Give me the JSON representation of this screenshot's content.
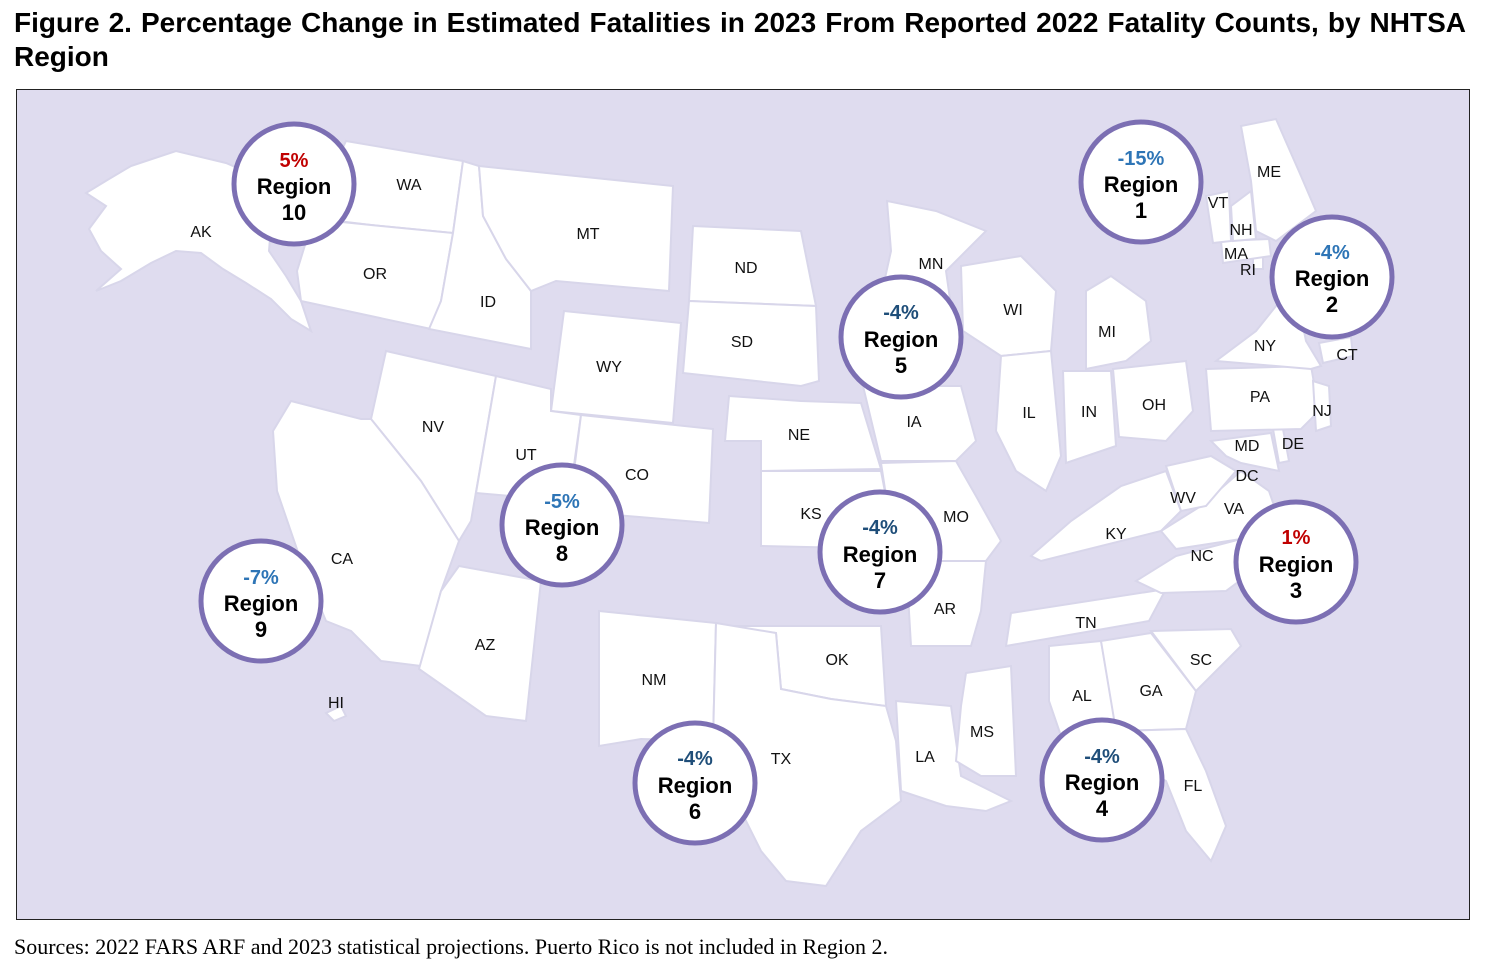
{
  "title": "Figure 2. Percentage Change in Estimated Fatalities in 2023 From Reported 2022 Fatality Counts, by NHTSA Region",
  "sources": "Sources: 2022 FARS ARF and 2023 statistical projections. Puerto Rico is not included in Region 2.",
  "colors": {
    "background": "#dfdcef",
    "state_fill": "#ffffff",
    "circle_stroke": "#7c6fb3",
    "decrease_dark": "#1f4e79",
    "decrease_light": "#2e75b6",
    "increase": "#c00000"
  },
  "states": [
    "AK",
    "WA",
    "OR",
    "ID",
    "MT",
    "WY",
    "NV",
    "UT",
    "CO",
    "CA",
    "AZ",
    "NM",
    "HI",
    "ND",
    "SD",
    "NE",
    "KS",
    "OK",
    "TX",
    "MN",
    "IA",
    "MO",
    "AR",
    "LA",
    "WI",
    "IL",
    "MI",
    "IN",
    "OH",
    "KY",
    "TN",
    "MS",
    "AL",
    "GA",
    "FL",
    "SC",
    "NC",
    "VA",
    "WV",
    "MD",
    "DC",
    "DE",
    "PA",
    "NJ",
    "NY",
    "CT",
    "RI",
    "MA",
    "NH",
    "VT",
    "ME"
  ],
  "regions": [
    {
      "pct": "5%",
      "name": "Region",
      "number": "10",
      "color": "#c00000"
    },
    {
      "pct": "-15%",
      "name": "Region",
      "number": "1",
      "color": "#2e75b6"
    },
    {
      "pct": "-4%",
      "name": "Region",
      "number": "2",
      "color": "#2e75b6"
    },
    {
      "pct": "-4%",
      "name": "Region",
      "number": "5",
      "color": "#1f4e79"
    },
    {
      "pct": "-5%",
      "name": "Region",
      "number": "8",
      "color": "#2e75b6"
    },
    {
      "pct": "-4%",
      "name": "Region",
      "number": "7",
      "color": "#1f4e79"
    },
    {
      "pct": "1%",
      "name": "Region",
      "number": "3",
      "color": "#c00000"
    },
    {
      "pct": "-7%",
      "name": "Region",
      "number": "9",
      "color": "#2e75b6"
    },
    {
      "pct": "-4%",
      "name": "Region",
      "number": "6",
      "color": "#1f4e79"
    },
    {
      "pct": "-4%",
      "name": "Region",
      "number": "4",
      "color": "#1f4e79"
    }
  ]
}
